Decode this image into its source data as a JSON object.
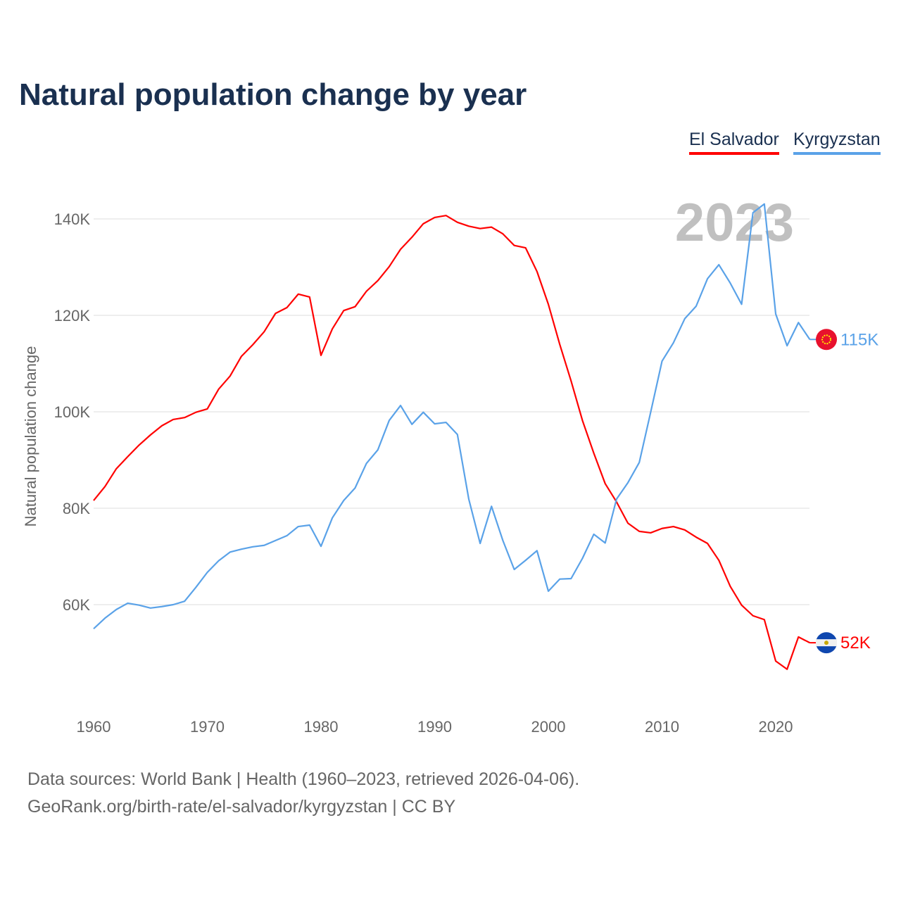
{
  "title": "Natural population change by year",
  "source_line1": "Data sources: World Bank | Health (1960–2023, retrieved 2026-04-06).",
  "source_line2": "GeoRank.org/birth-rate/el-salvador/kyrgyzstan | CC BY",
  "chart_data": {
    "type": "line",
    "title": "Natural population change by year",
    "ylabel": "Natural population change",
    "xlabel": "",
    "year_watermark": "2023",
    "xlim": [
      1960,
      2023
    ],
    "ylim": [
      40000,
      150000
    ],
    "xticks": [
      1960,
      1970,
      1980,
      1990,
      2000,
      2010,
      2020
    ],
    "yticks": [
      {
        "v": 60000,
        "label": "60K"
      },
      {
        "v": 80000,
        "label": "80K"
      },
      {
        "v": 100000,
        "label": "100K"
      },
      {
        "v": 120000,
        "label": "120K"
      },
      {
        "v": 140000,
        "label": "140K"
      }
    ],
    "grid": true,
    "legend_placement": "top-right",
    "x_start": 1960,
    "series": [
      {
        "name": "El Salvador",
        "color": "#ff0000",
        "end_label": "52K",
        "flag": "el-salvador-flag",
        "values": [
          81.6,
          84.5,
          88.2,
          90.7,
          93.1,
          95.2,
          97.1,
          98.4,
          98.8,
          99.9,
          100.6,
          104.7,
          107.4,
          111.5,
          113.9,
          116.6,
          120.4,
          121.6,
          124.4,
          123.8,
          111.7,
          117.2,
          121.0,
          121.8,
          125.0,
          127.2,
          130.1,
          133.7,
          136.2,
          139.0,
          140.3,
          140.7,
          139.3,
          138.5,
          138.0,
          138.3,
          136.9,
          134.5,
          134.0,
          129.1,
          122.3,
          114.0,
          106.4,
          98.2,
          91.4,
          85.1,
          81.3,
          76.9,
          75.2,
          74.9,
          75.8,
          76.2,
          75.5,
          74.0,
          72.7,
          69.2,
          63.8,
          59.9,
          57.7,
          56.9,
          48.3,
          46.6,
          53.3,
          52.1
        ]
      },
      {
        "name": "Kyrgyzstan",
        "color": "#5aa2e8",
        "end_label": "115K",
        "flag": "kyrgyzstan-flag",
        "values": [
          55.0,
          57.2,
          59.0,
          60.3,
          59.9,
          59.3,
          59.6,
          60.0,
          60.7,
          63.6,
          66.7,
          69.1,
          70.9,
          71.5,
          72.0,
          72.3,
          73.3,
          74.3,
          76.2,
          76.5,
          72.1,
          78.0,
          81.6,
          84.2,
          89.3,
          92.1,
          98.2,
          101.3,
          97.4,
          99.9,
          97.5,
          97.8,
          95.3,
          81.9,
          72.7,
          80.4,
          73.3,
          67.3,
          69.2,
          71.2,
          62.8,
          65.3,
          65.4,
          69.6,
          74.6,
          72.8,
          81.9,
          85.3,
          89.5,
          99.9,
          110.5,
          114.3,
          119.3,
          121.9,
          127.6,
          130.5,
          126.7,
          122.3,
          141.3,
          143.1,
          120.3,
          113.7,
          118.5,
          115.0
        ]
      }
    ]
  }
}
